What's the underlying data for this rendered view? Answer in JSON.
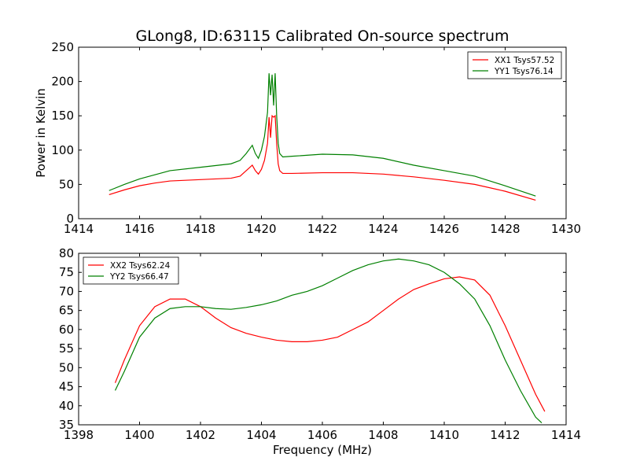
{
  "chart_data": [
    {
      "type": "line",
      "title": "GLong8, ID:63115 Calibrated On-source spectrum",
      "ylabel": "Power in Kelvin",
      "xlabel": "",
      "xlim": [
        1414,
        1430
      ],
      "ylim": [
        0,
        250
      ],
      "xticks": [
        "1414",
        "1416",
        "1418",
        "1420",
        "1422",
        "1424",
        "1426",
        "1428",
        "1430"
      ],
      "yticks": [
        "0",
        "50",
        "100",
        "150",
        "200",
        "250"
      ],
      "legend_position": "top-right",
      "series": [
        {
          "name": "XX1 Tsys57.52",
          "color": "#ff0000",
          "x": [
            1415,
            1415.5,
            1416,
            1416.5,
            1417,
            1418,
            1419,
            1419.3,
            1419.5,
            1419.7,
            1419.8,
            1419.9,
            1420.0,
            1420.1,
            1420.2,
            1420.25,
            1420.3,
            1420.35,
            1420.4,
            1420.45,
            1420.5,
            1420.55,
            1420.6,
            1420.7,
            1421,
            1422,
            1423,
            1424,
            1425,
            1426,
            1427,
            1428,
            1429
          ],
          "y": [
            35,
            42,
            48,
            52,
            55,
            57,
            59,
            62,
            70,
            78,
            70,
            65,
            72,
            85,
            110,
            148,
            118,
            150,
            148,
            150,
            110,
            80,
            70,
            66,
            66,
            67,
            67,
            65,
            61,
            56,
            50,
            40,
            27
          ]
        },
        {
          "name": "YY1 Tsys76.14",
          "color": "#008000",
          "x": [
            1415,
            1415.5,
            1416,
            1416.5,
            1417,
            1418,
            1419,
            1419.3,
            1419.5,
            1419.7,
            1419.8,
            1419.9,
            1420.0,
            1420.1,
            1420.2,
            1420.25,
            1420.3,
            1420.35,
            1420.4,
            1420.45,
            1420.5,
            1420.55,
            1420.6,
            1420.7,
            1421,
            1422,
            1423,
            1424,
            1425,
            1426,
            1427,
            1428,
            1429
          ],
          "y": [
            41,
            50,
            58,
            64,
            70,
            75,
            80,
            85,
            95,
            107,
            95,
            88,
            100,
            120,
            155,
            212,
            180,
            210,
            165,
            212,
            150,
            110,
            95,
            90,
            91,
            94,
            93,
            88,
            78,
            70,
            62,
            48,
            33
          ]
        }
      ]
    },
    {
      "type": "line",
      "title": "",
      "ylabel": "",
      "xlabel": "Frequency (MHz)",
      "xlim": [
        1398,
        1414
      ],
      "ylim": [
        35,
        80
      ],
      "xticks": [
        "1398",
        "1400",
        "1402",
        "1404",
        "1406",
        "1408",
        "1410",
        "1412",
        "1414"
      ],
      "yticks": [
        "35",
        "40",
        "45",
        "50",
        "55",
        "60",
        "65",
        "70",
        "75",
        "80"
      ],
      "legend_position": "top-left",
      "series": [
        {
          "name": "XX2 Tsys62.24",
          "color": "#ff0000",
          "x": [
            1399.2,
            1399.5,
            1400,
            1400.5,
            1401,
            1401.5,
            1402,
            1402.5,
            1403,
            1403.5,
            1404,
            1404.5,
            1405,
            1405.5,
            1406,
            1406.5,
            1407,
            1407.5,
            1408,
            1408.5,
            1409,
            1409.5,
            1410,
            1410.5,
            1411,
            1411.5,
            1412,
            1412.5,
            1413,
            1413.3
          ],
          "y": [
            46,
            52,
            61,
            66,
            68,
            68,
            66,
            63,
            60.5,
            59,
            58,
            57.2,
            56.8,
            56.8,
            57.2,
            58,
            60,
            62,
            65,
            68,
            70.5,
            72,
            73.3,
            73.8,
            73,
            69,
            61,
            52,
            43,
            38.5
          ]
        },
        {
          "name": "YY2 Tsys66.47",
          "color": "#008000",
          "x": [
            1399.2,
            1399.5,
            1400,
            1400.5,
            1401,
            1401.5,
            1402,
            1402.5,
            1403,
            1403.5,
            1404,
            1404.5,
            1405,
            1405.5,
            1406,
            1406.5,
            1407,
            1407.5,
            1408,
            1408.5,
            1409,
            1409.5,
            1410,
            1410.5,
            1411,
            1411.5,
            1412,
            1412.5,
            1413,
            1413.2
          ],
          "y": [
            44,
            49,
            58,
            63,
            65.5,
            66,
            66,
            65.5,
            65.3,
            65.8,
            66.5,
            67.5,
            69,
            70,
            71.5,
            73.5,
            75.5,
            77,
            78,
            78.5,
            78,
            77,
            75,
            72,
            68,
            61,
            52,
            44,
            37,
            35.5
          ]
        }
      ]
    }
  ]
}
